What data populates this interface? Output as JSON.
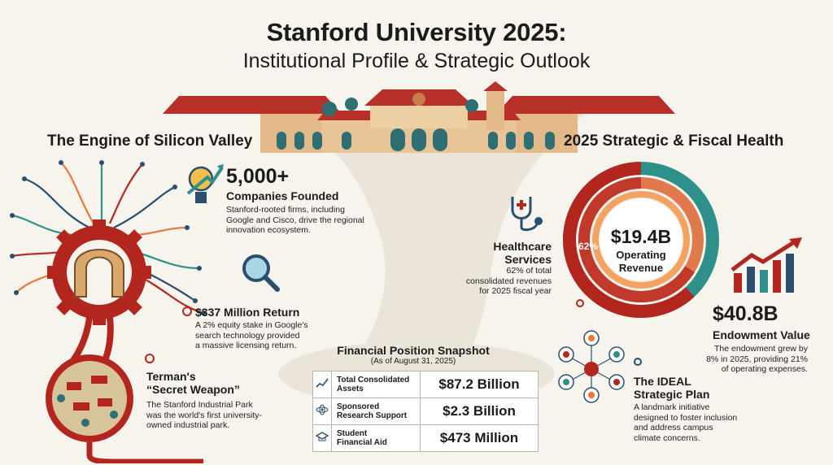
{
  "header": {
    "title": "Stanford University 2025:",
    "subtitle": "Institutional Profile & Strategic Outlook"
  },
  "left": {
    "section_title": "The Engine of Silicon Valley",
    "companies": {
      "value": "5,000+",
      "label": "Companies Founded",
      "desc_1": "Stanford-rooted firms, including",
      "desc_2": "Google and Cisco, drive the regional",
      "desc_3": "innovation ecosystem."
    },
    "return": {
      "value": "$337 Million Return",
      "desc_1": "A 2% equity stake in Google's",
      "desc_2": "search technology provided",
      "desc_3": "a massive licensing return."
    },
    "terman": {
      "title_1": "Terman's",
      "title_2": "“Secret Weapon”",
      "desc_1": "The Stanford Industrial Park",
      "desc_2": "was the world's first university-",
      "desc_3": "owned industrial park."
    }
  },
  "snapshot": {
    "title": "Financial Position Snapshot",
    "asof": "(As of August 31, 2025)",
    "rows": [
      {
        "label_1": "Total Consolidated",
        "label_2": "Assets",
        "value": "$87.2 Billion",
        "icon": "chart-icon"
      },
      {
        "label_1": "Sponsored",
        "label_2": "Research Support",
        "value": "$2.3 Billion",
        "icon": "atom-icon"
      },
      {
        "label_1": "Student",
        "label_2": "Financial Aid",
        "value": "$473 Million",
        "icon": "graduation-cap-icon"
      }
    ]
  },
  "right": {
    "section_title": "2025 Strategic & Fiscal Health",
    "revenue": {
      "value": "$19.4B",
      "label_1": "Operating",
      "label_2": "Revenue",
      "pct_label": "62%",
      "healthcare_share": 0.62
    },
    "healthcare": {
      "title_1": "Healthcare",
      "title_2": "Services",
      "desc_1": "62% of total",
      "desc_2": "consolidated revenues",
      "desc_3": "for 2025 fiscal year"
    },
    "endowment": {
      "value": "$40.8B",
      "label": "Endowment Value",
      "desc_1": "The endowment grew by",
      "desc_2": "8% in 2025, providing 21%",
      "desc_3": "of operating expenses."
    },
    "ideal": {
      "title_1": "The IDEAL",
      "title_2": "Strategic Plan",
      "desc_1": "A landmark initiative",
      "desc_2": "designed to foster inclusion",
      "desc_3": "and address campus",
      "desc_4": "climate concerns."
    }
  },
  "colors": {
    "cardinal": "#b3261e",
    "orange": "#e8773a",
    "teal": "#2f8f8a",
    "navy": "#2b4e6e",
    "cream": "#f7f4ee"
  }
}
